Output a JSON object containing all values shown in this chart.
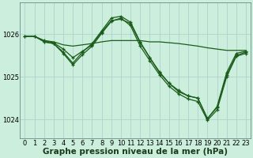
{
  "bg_color": "#cceedd",
  "grid_color": "#aacccc",
  "line_color": "#1a5c1a",
  "marker_color": "#1a5c1a",
  "xlabel": "Graphe pression niveau de la mer (hPa)",
  "xlabel_fontsize": 7.5,
  "tick_fontsize": 6,
  "ylim": [
    1023.55,
    1026.75
  ],
  "yticks": [
    1024,
    1025,
    1026
  ],
  "xticks": [
    0,
    1,
    2,
    3,
    4,
    5,
    6,
    7,
    8,
    9,
    10,
    11,
    12,
    13,
    14,
    15,
    16,
    17,
    18,
    19,
    20,
    21,
    22,
    23
  ],
  "series": [
    {
      "x": [
        0,
        1,
        2,
        3,
        4,
        5,
        6,
        7,
        8,
        9,
        10,
        11,
        12,
        13,
        14,
        15,
        16,
        17,
        18,
        19,
        20,
        21,
        22,
        23
      ],
      "y": [
        1025.95,
        1025.95,
        1025.85,
        1025.82,
        1025.75,
        1025.72,
        1025.75,
        1025.78,
        1025.82,
        1025.85,
        1025.85,
        1025.85,
        1025.85,
        1025.82,
        1025.82,
        1025.8,
        1025.78,
        1025.75,
        1025.72,
        1025.68,
        1025.65,
        1025.62,
        1025.62,
        1025.62
      ],
      "marker": false,
      "lw": 0.9
    },
    {
      "x": [
        0,
        1,
        2,
        3,
        4,
        5,
        6,
        7,
        8,
        9,
        10,
        11,
        12,
        13,
        14,
        15,
        16,
        17,
        18,
        19,
        20,
        21,
        22,
        23
      ],
      "y": [
        1025.95,
        1025.95,
        1025.85,
        1025.8,
        1025.65,
        1025.45,
        1025.6,
        1025.75,
        1026.05,
        1026.32,
        1026.35,
        1026.25,
        1025.8,
        1025.45,
        1025.1,
        1024.85,
        1024.65,
        1024.55,
        1024.5,
        1024.02,
        1024.3,
        1025.1,
        1025.55,
        1025.6
      ],
      "marker": true,
      "lw": 0.9
    },
    {
      "x": [
        0,
        1,
        2,
        3,
        4,
        5,
        6,
        7,
        8,
        9,
        10,
        11,
        12,
        13,
        14,
        15,
        16,
        17,
        18,
        19,
        20,
        21,
        22,
        23
      ],
      "y": [
        1025.95,
        1025.95,
        1025.82,
        1025.78,
        1025.58,
        1025.32,
        1025.58,
        1025.78,
        1026.08,
        1026.38,
        1026.42,
        1026.28,
        1025.82,
        1025.45,
        1025.12,
        1024.85,
        1024.68,
        1024.55,
        1024.5,
        1024.02,
        1024.28,
        1025.05,
        1025.5,
        1025.58
      ],
      "marker": true,
      "lw": 0.9
    },
    {
      "x": [
        2,
        3,
        4,
        5,
        6,
        7,
        8,
        9,
        10,
        11,
        12,
        13,
        14,
        15,
        16,
        17,
        18,
        19,
        20,
        21,
        22,
        23
      ],
      "y": [
        1025.82,
        1025.78,
        1025.55,
        1025.28,
        1025.52,
        1025.72,
        1026.02,
        1026.3,
        1026.38,
        1026.2,
        1025.72,
        1025.38,
        1025.05,
        1024.78,
        1024.6,
        1024.48,
        1024.42,
        1023.98,
        1024.22,
        1025.0,
        1025.48,
        1025.55
      ],
      "marker": true,
      "lw": 0.9
    }
  ],
  "marker_size": 3.0,
  "marker_style": "+"
}
